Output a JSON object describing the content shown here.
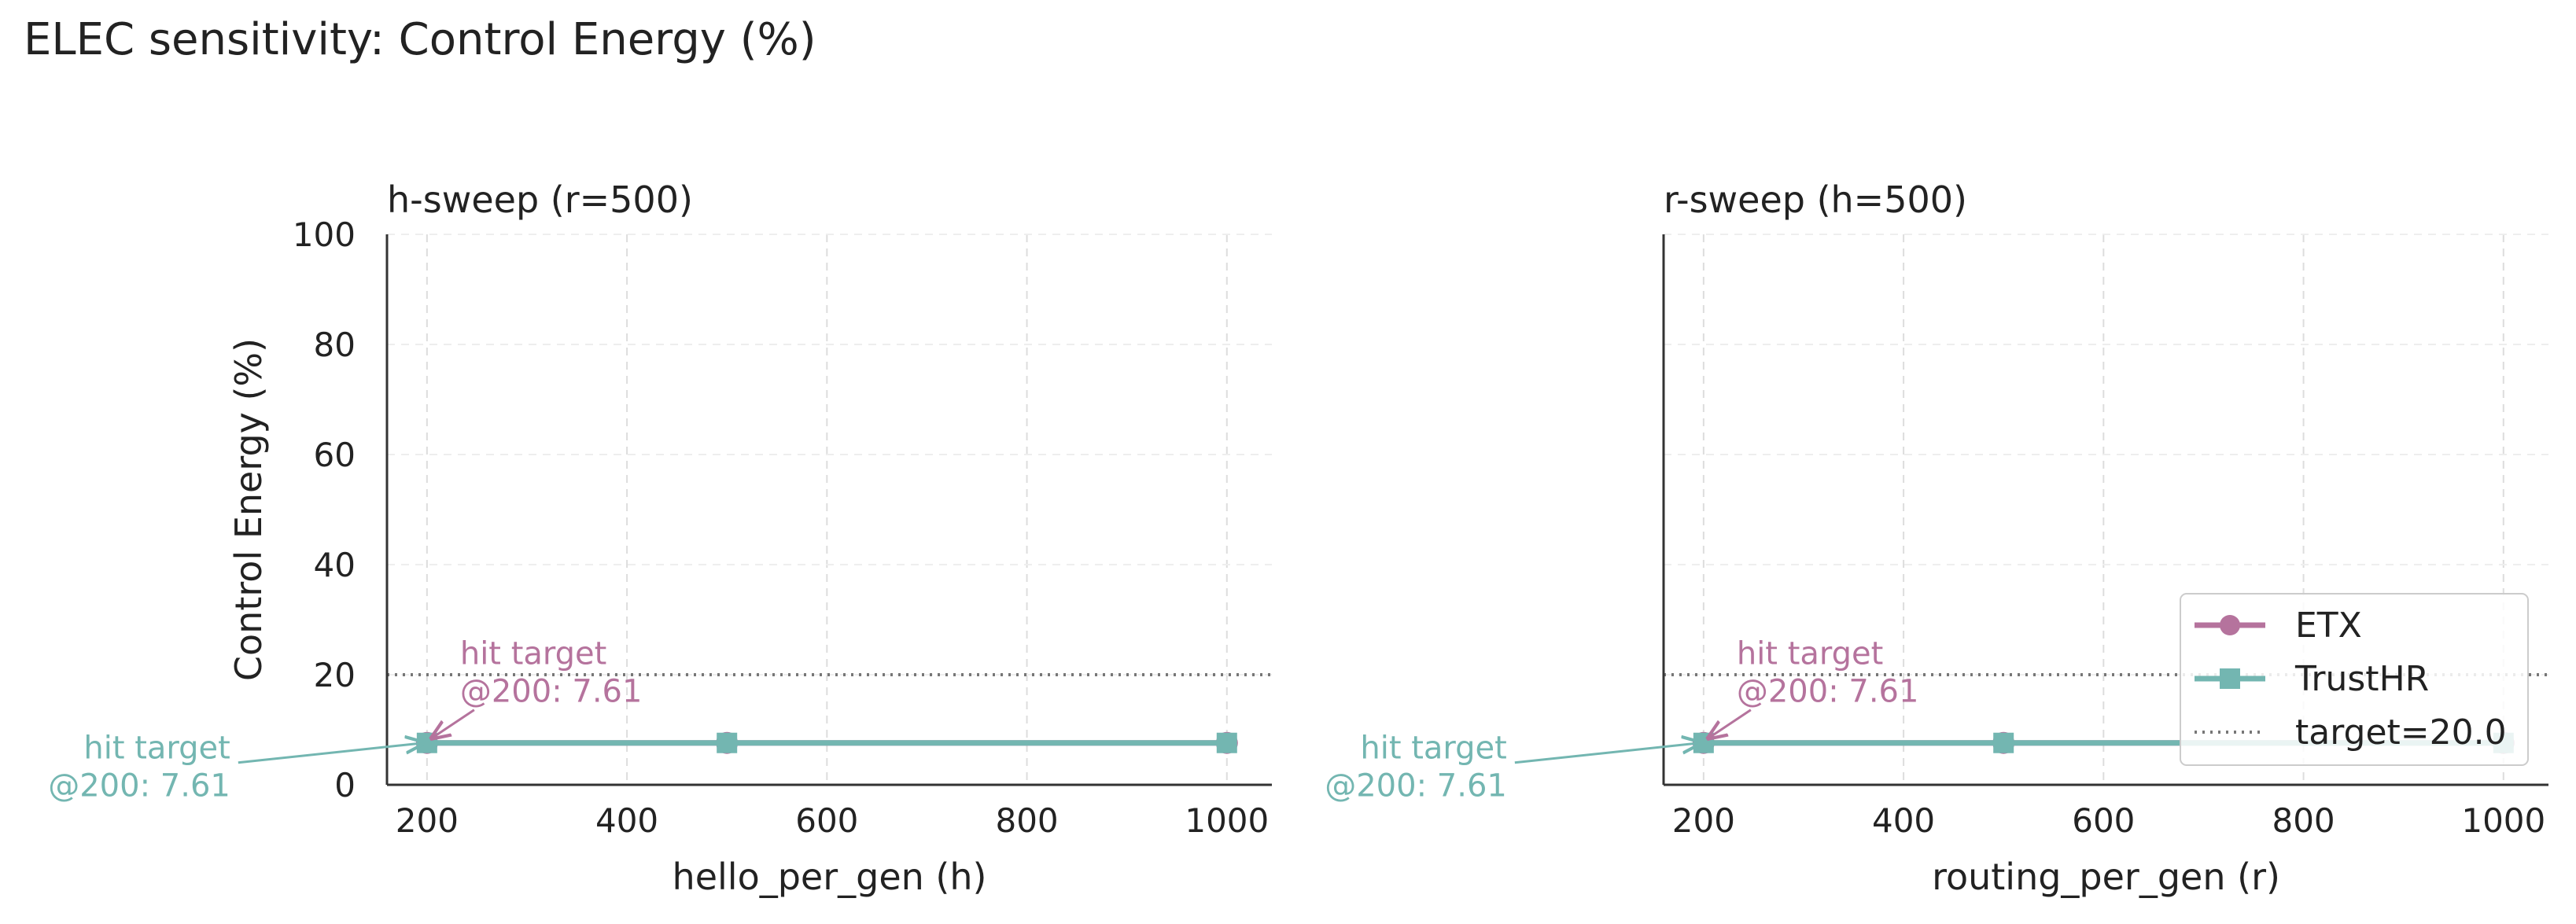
{
  "figure": {
    "title": "ELEC sensitivity: Control Energy (%)"
  },
  "colors": {
    "etx": "#b5739d",
    "trusthr": "#73b6b1",
    "target": "#777777",
    "axis": "#333333",
    "grid": "#dddddd"
  },
  "legend": {
    "placement": "lower-right of second panel",
    "entries": [
      {
        "label": "ETX",
        "marker": "circle",
        "color": "#b5739d"
      },
      {
        "label": "TrustHR",
        "marker": "square",
        "color": "#73b6b1"
      },
      {
        "label": "target=20.0",
        "marker": "dotted-line",
        "color": "#777777"
      }
    ]
  },
  "chart_data": [
    {
      "type": "line",
      "title": "h-sweep (r=500)",
      "xlabel": "hello_per_gen (h)",
      "ylabel": "Control Energy (%)",
      "xlim": [
        160,
        1045
      ],
      "ylim": [
        0,
        100
      ],
      "xticks": [
        200,
        400,
        600,
        800,
        1000
      ],
      "yticks": [
        0,
        20,
        40,
        60,
        80,
        100
      ],
      "grid": true,
      "x": [
        200,
        500,
        1000
      ],
      "series": [
        {
          "name": "ETX",
          "marker": "circle",
          "values": [
            7.61,
            7.61,
            7.61
          ]
        },
        {
          "name": "TrustHR",
          "marker": "square",
          "values": [
            7.61,
            7.61,
            7.61
          ]
        }
      ],
      "target": {
        "y": 20.0
      },
      "annotations": [
        {
          "series": "ETX",
          "line1": "hit target",
          "line2": "@200: 7.61",
          "x": 200,
          "y": 7.61
        },
        {
          "series": "TrustHR",
          "line1": "hit target",
          "line2": "@200: 7.61",
          "x": 200,
          "y": 7.61
        }
      ]
    },
    {
      "type": "line",
      "title": "r-sweep (h=500)",
      "xlabel": "routing_per_gen (r)",
      "ylabel": "",
      "xlim": [
        160,
        1045
      ],
      "ylim": [
        0,
        100
      ],
      "xticks": [
        200,
        400,
        600,
        800,
        1000
      ],
      "yticks": [],
      "grid": true,
      "x": [
        200,
        500,
        1000
      ],
      "series": [
        {
          "name": "ETX",
          "marker": "circle",
          "values": [
            7.61,
            7.61,
            7.61
          ]
        },
        {
          "name": "TrustHR",
          "marker": "square",
          "values": [
            7.61,
            7.61,
            7.61
          ]
        }
      ],
      "target": {
        "y": 20.0
      },
      "annotations": [
        {
          "series": "ETX",
          "line1": "hit target",
          "line2": "@200: 7.61",
          "x": 200,
          "y": 7.61
        },
        {
          "series": "TrustHR",
          "line1": "hit target",
          "line2": "@200: 7.61",
          "x": 200,
          "y": 7.61
        }
      ]
    }
  ]
}
